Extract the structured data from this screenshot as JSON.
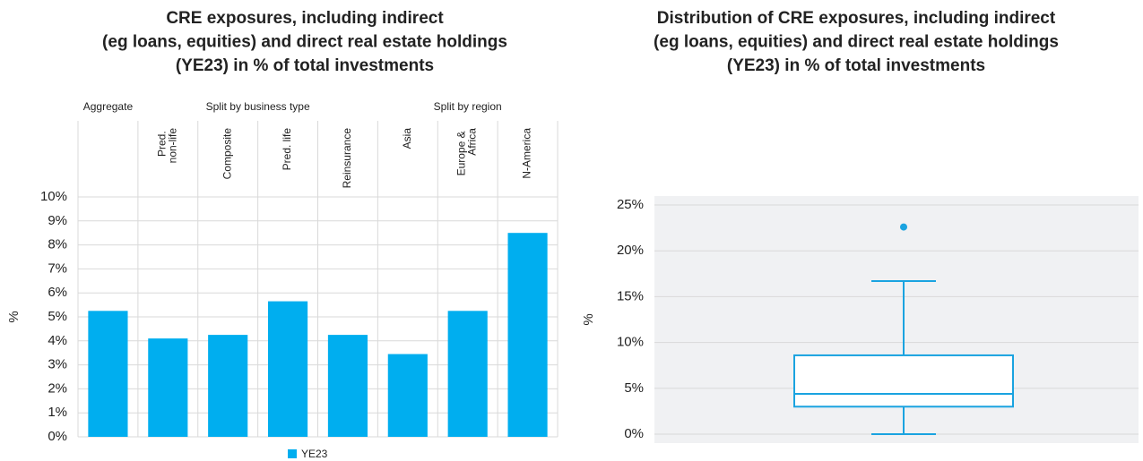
{
  "chart_data": [
    {
      "type": "grouped-bar",
      "title": [
        "CRE exposures, including indirect",
        "(eg loans, equities) and direct real estate holdings",
        "(YE23) in % of total investments"
      ],
      "ylabel": "%",
      "series": [
        {
          "name": "YE23",
          "color": "#00aeef"
        }
      ],
      "groups": [
        {
          "name": "Aggregate",
          "categories": [
            null
          ],
          "values": [
            5.25
          ]
        },
        {
          "name": "Split by business type",
          "categories": [
            "Pred. non-life",
            "Composite",
            "Pred. life",
            "Reinsurance"
          ],
          "values": [
            4.1,
            4.25,
            5.65,
            4.25
          ]
        },
        {
          "name": "Split by region",
          "categories": [
            "Asia",
            "Europe & Africa",
            "N-America"
          ],
          "values": [
            3.45,
            5.25,
            8.5
          ]
        }
      ],
      "ylim": [
        0,
        10
      ],
      "yticks": [
        {
          "value": 0,
          "label": "0%"
        },
        {
          "value": 1,
          "label": "1%"
        },
        {
          "value": 2,
          "label": "2%"
        },
        {
          "value": 3,
          "label": "3%"
        },
        {
          "value": 4,
          "label": "4%"
        },
        {
          "value": 5,
          "label": "5%"
        },
        {
          "value": 6,
          "label": "6%"
        },
        {
          "value": 7,
          "label": "7%"
        },
        {
          "value": 8,
          "label": "8%"
        },
        {
          "value": 9,
          "label": "9%"
        },
        {
          "value": 10,
          "label": "10%"
        }
      ],
      "grid": true,
      "legend": "bottom"
    },
    {
      "type": "box",
      "title": [
        "Distribution of CRE exposures, including indirect",
        "(eg loans, equities) and direct real estate holdings",
        "(YE23) in % of total investments"
      ],
      "ylabel": "%",
      "color": "#1aa3e0",
      "boxes": [
        {
          "whislo": 0,
          "q1": 3.0,
          "med": 4.4,
          "q3": 8.6,
          "whishi": 16.7,
          "fliers": [
            22.6
          ]
        }
      ],
      "ylim": [
        0,
        25
      ],
      "yticks": [
        {
          "value": 0,
          "label": "0%"
        },
        {
          "value": 5,
          "label": "5%"
        },
        {
          "value": 10,
          "label": "10%"
        },
        {
          "value": 15,
          "label": "15%"
        },
        {
          "value": 20,
          "label": "20%"
        },
        {
          "value": 25,
          "label": "25%"
        }
      ],
      "grid": true
    }
  ]
}
